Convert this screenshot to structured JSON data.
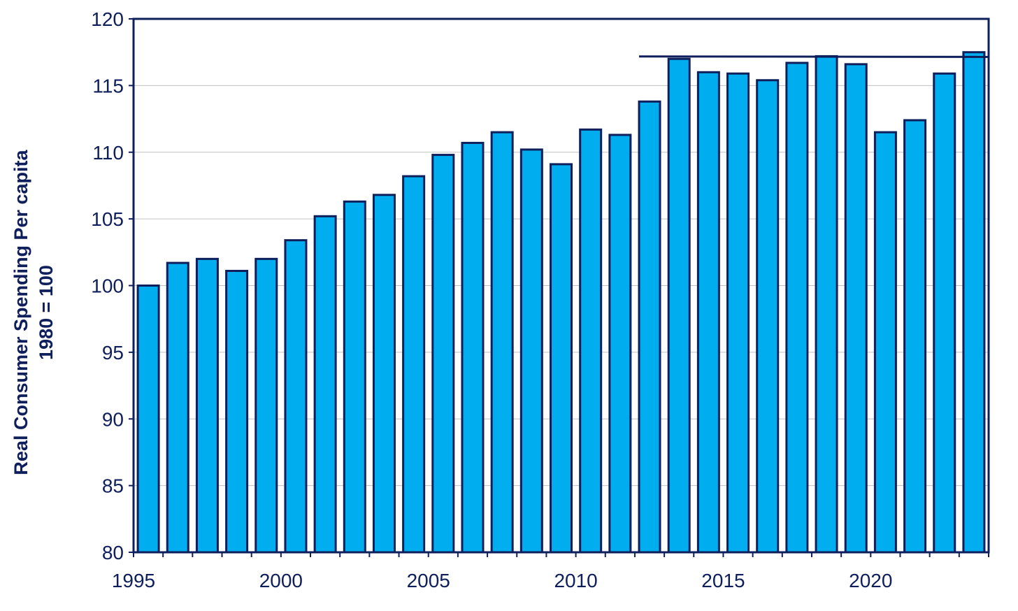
{
  "chart_data": {
    "type": "bar",
    "ylabel_line1": "Real Consumer Spending Per capita",
    "ylabel_line2": "1980 = 100",
    "ylim": [
      80,
      120
    ],
    "yticks": [
      80,
      85,
      90,
      95,
      100,
      105,
      110,
      115,
      120
    ],
    "xtick_labels": [
      "1995",
      "2000",
      "2005",
      "2010",
      "2015",
      "2020"
    ],
    "grid": "horizontal",
    "categories": [
      1995,
      1996,
      1997,
      1998,
      1999,
      2000,
      2001,
      2002,
      2003,
      2004,
      2005,
      2006,
      2007,
      2008,
      2009,
      2010,
      2011,
      2012,
      2013,
      2014,
      2015,
      2016,
      2017,
      2018,
      2019,
      2020,
      2021,
      2022,
      2023
    ],
    "values": [
      100.0,
      101.7,
      102.0,
      101.1,
      102.0,
      103.4,
      105.2,
      106.3,
      106.8,
      108.2,
      109.8,
      110.7,
      111.5,
      110.2,
      109.1,
      111.7,
      111.3,
      113.8,
      117.0,
      116.0,
      115.9,
      115.4,
      116.7,
      117.2,
      116.6,
      111.5,
      112.4,
      115.9,
      117.5
    ],
    "reference_line": {
      "value": 117.15,
      "from_year": 2012,
      "to_year": 2023
    },
    "colors": {
      "bar_fill": "#00aeef",
      "bar_stroke": "#0e1f5b",
      "text": "#0e1f5b",
      "grid": "#c0c0c0"
    }
  }
}
